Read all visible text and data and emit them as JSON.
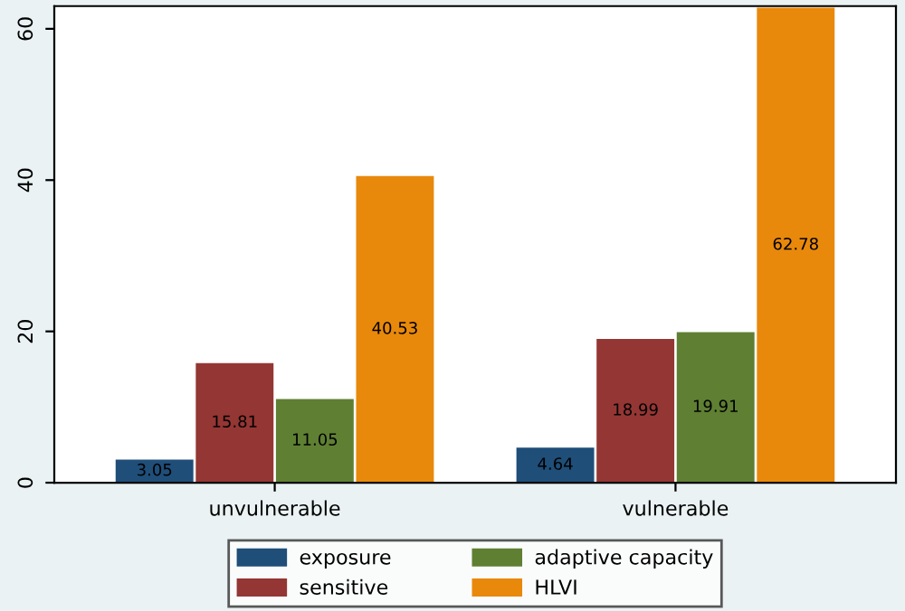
{
  "chart_data": {
    "type": "bar",
    "categories": [
      "unvulnerable",
      "vulnerable"
    ],
    "series": [
      {
        "name": "exposure",
        "color": "#1f4e79",
        "values": [
          3.05,
          4.64
        ]
      },
      {
        "name": "sensitive",
        "color": "#943634",
        "values": [
          15.81,
          18.99
        ]
      },
      {
        "name": "adaptive capacity",
        "color": "#5f7f33",
        "values": [
          11.05,
          19.91
        ]
      },
      {
        "name": "HLVI",
        "color": "#e8890c",
        "values": [
          40.53,
          62.78
        ]
      }
    ],
    "ylim": [
      0,
      63
    ],
    "yticks": [
      0,
      20,
      40,
      60
    ],
    "data_labels": true,
    "legend": "bottom",
    "grid": false
  }
}
